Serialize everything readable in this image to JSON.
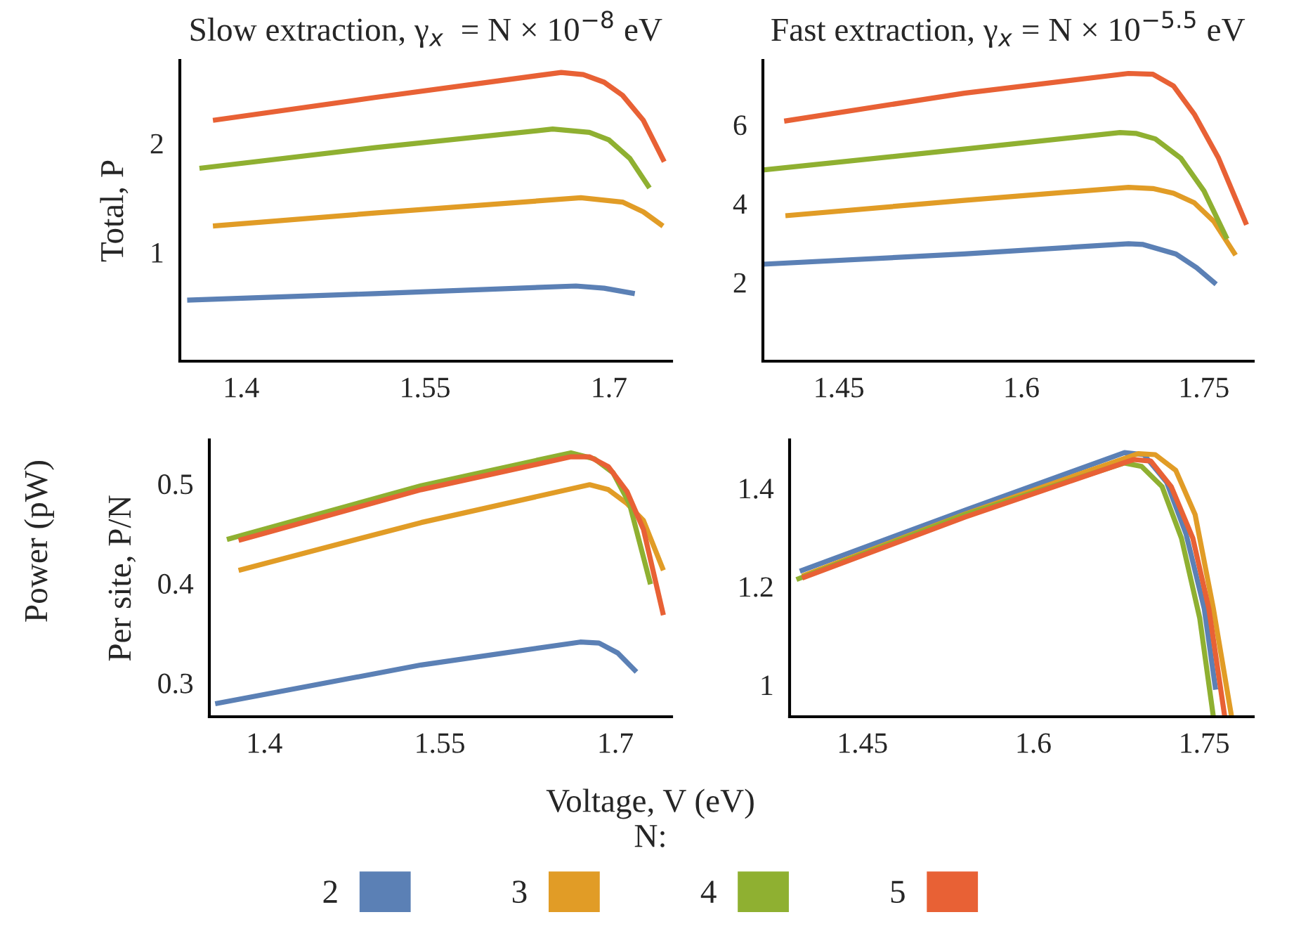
{
  "chart_data": [
    {
      "type": "line",
      "title": "Slow extraction, γ$_{x}$  = N × 10$^{−8}$ eV",
      "ylabel": "Total, P",
      "annotations": [
        "Power (pW)"
      ],
      "xlim": [
        1.35,
        1.751
      ],
      "xticks": [
        1.4,
        1.55,
        1.7
      ],
      "ylim": [
        0,
        2.76
      ],
      "yticks": [
        1,
        2
      ],
      "grid": false,
      "series": [
        {
          "color": "#5b80b5",
          "x": [
            1.356,
            1.509,
            1.673,
            1.696,
            1.721
          ],
          "values": [
            0.56,
            0.62,
            0.69,
            0.67,
            0.62
          ]
        },
        {
          "color": "#e19c26",
          "x": [
            1.377,
            1.509,
            1.677,
            1.711,
            1.728,
            1.744
          ],
          "values": [
            1.24,
            1.36,
            1.5,
            1.46,
            1.37,
            1.24
          ]
        },
        {
          "color": "#8fb031",
          "x": [
            1.366,
            1.509,
            1.654,
            1.684,
            1.7,
            1.717,
            1.733
          ],
          "values": [
            1.77,
            1.96,
            2.13,
            2.1,
            2.03,
            1.86,
            1.59
          ]
        },
        {
          "color": "#e86135",
          "x": [
            1.377,
            1.509,
            1.661,
            1.679,
            1.696,
            1.711,
            1.728,
            1.745
          ],
          "values": [
            2.21,
            2.42,
            2.65,
            2.63,
            2.56,
            2.44,
            2.21,
            1.83
          ]
        }
      ]
    },
    {
      "type": "line",
      "title": "Fast extraction, γ$_{x}$ = N × 10$^{−5.5}$ eV",
      "xlim": [
        1.3875,
        1.7905
      ],
      "xticks": [
        1.45,
        1.6,
        1.75
      ],
      "ylim": [
        0,
        7.63
      ],
      "yticks": [
        2,
        4,
        6
      ],
      "grid": false,
      "series": [
        {
          "color": "#5b80b5",
          "x": [
            1.3875,
            1.553,
            1.688,
            1.7,
            1.727,
            1.744,
            1.76
          ],
          "values": [
            2.46,
            2.72,
            2.98,
            2.96,
            2.72,
            2.37,
            1.95
          ]
        },
        {
          "color": "#e19c26",
          "x": [
            1.406,
            1.553,
            1.688,
            1.708,
            1.725,
            1.742,
            1.758,
            1.776
          ],
          "values": [
            3.69,
            4.08,
            4.41,
            4.38,
            4.26,
            4.02,
            3.55,
            2.69
          ]
        },
        {
          "color": "#8fb031",
          "x": [
            1.3875,
            1.553,
            1.681,
            1.694,
            1.71,
            1.731,
            1.75,
            1.769
          ],
          "values": [
            4.85,
            5.38,
            5.8,
            5.78,
            5.64,
            5.15,
            4.32,
            3.1
          ]
        },
        {
          "color": "#e86135",
          "x": [
            1.405,
            1.553,
            1.688,
            1.708,
            1.725,
            1.742,
            1.762,
            1.785
          ],
          "values": [
            6.09,
            6.8,
            7.3,
            7.28,
            6.98,
            6.27,
            5.15,
            3.46
          ]
        }
      ]
    },
    {
      "type": "line",
      "ylabel": "Per site, P/N",
      "annotations": [
        "Voltage, V (eV)"
      ],
      "xlim": [
        1.353,
        1.748
      ],
      "xticks": [
        1.4,
        1.55,
        1.7
      ],
      "ylim": [
        0.266,
        0.544
      ],
      "yticks": [
        0.3,
        0.4,
        0.5
      ],
      "grid": false,
      "series": [
        {
          "color": "#5b80b5",
          "x": [
            1.358,
            1.534,
            1.67,
            1.686,
            1.702,
            1.718
          ],
          "values": [
            0.279,
            0.318,
            0.341,
            0.34,
            0.33,
            0.311
          ]
        },
        {
          "color": "#e19c26",
          "x": [
            1.378,
            1.534,
            1.678,
            1.694,
            1.71,
            1.724,
            1.741
          ],
          "values": [
            0.413,
            0.461,
            0.499,
            0.494,
            0.48,
            0.463,
            0.413
          ]
        },
        {
          "color": "#8fb031",
          "x": [
            1.368,
            1.534,
            1.662,
            1.682,
            1.698,
            1.712,
            1.73
          ],
          "values": [
            0.444,
            0.498,
            0.531,
            0.525,
            0.511,
            0.48,
            0.399
          ]
        },
        {
          "color": "#e86135",
          "x": [
            1.378,
            1.534,
            1.662,
            1.678,
            1.694,
            1.71,
            1.724,
            1.741
          ],
          "values": [
            0.443,
            0.494,
            0.527,
            0.527,
            0.517,
            0.492,
            0.454,
            0.368
          ]
        }
      ]
    },
    {
      "type": "line",
      "legend_title": "N:",
      "xlim": [
        1.386,
        1.793
      ],
      "xticks": [
        1.45,
        1.6,
        1.75
      ],
      "ylim": [
        0.935,
        1.498
      ],
      "yticks": [
        1,
        1.2,
        1.4
      ],
      "grid": false,
      "legend": "bottom",
      "series": [
        {
          "name": "2",
          "color": "#5b80b5",
          "x": [
            1.395,
            1.54,
            1.68,
            1.697,
            1.717,
            1.734,
            1.75,
            1.76
          ],
          "values": [
            1.231,
            1.355,
            1.472,
            1.468,
            1.412,
            1.307,
            1.155,
            0.99
          ]
        },
        {
          "name": "3",
          "color": "#e19c26",
          "x": [
            1.397,
            1.54,
            1.692,
            1.707,
            1.725,
            1.742,
            1.758,
            1.774
          ],
          "values": [
            1.221,
            1.347,
            1.47,
            1.468,
            1.436,
            1.346,
            1.155,
            0.935
          ]
        },
        {
          "name": "4",
          "color": "#8fb031",
          "x": [
            1.392,
            1.54,
            1.68,
            1.695,
            1.713,
            1.73,
            1.746,
            1.758
          ],
          "values": [
            1.214,
            1.346,
            1.451,
            1.444,
            1.403,
            1.298,
            1.136,
            0.935
          ]
        },
        {
          "name": "5",
          "color": "#e86135",
          "x": [
            1.397,
            1.54,
            1.688,
            1.703,
            1.721,
            1.74,
            1.754,
            1.768
          ],
          "values": [
            1.217,
            1.341,
            1.458,
            1.455,
            1.403,
            1.298,
            1.155,
            0.935
          ]
        }
      ]
    }
  ]
}
